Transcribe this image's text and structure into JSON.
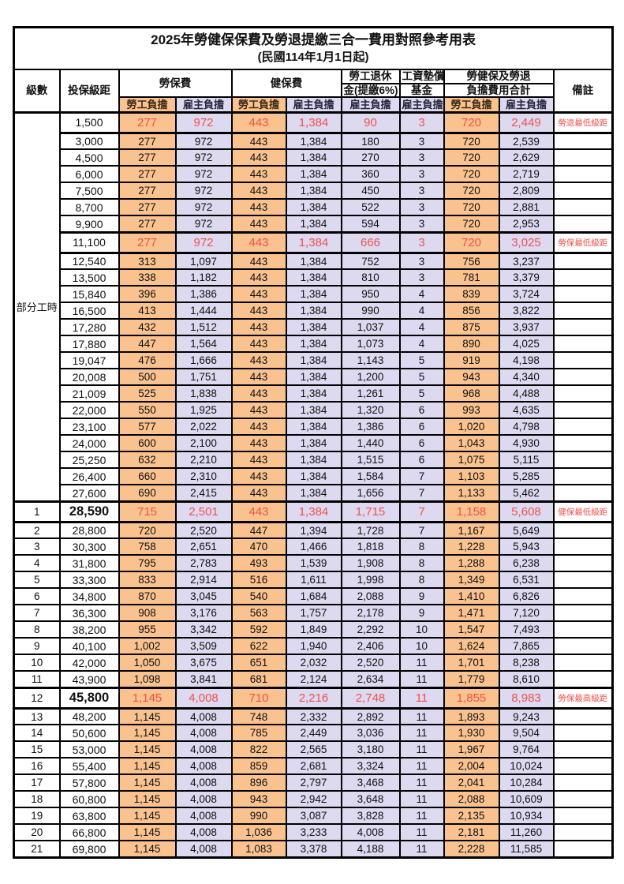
{
  "title": "2025年勞健保保費及勞退提繳三合一費用對照參考用表",
  "subtitle": "(民國114年1月1日起)",
  "header": {
    "level": "級數",
    "bracket": "投保級距",
    "labor_ins": "勞保費",
    "health_ins": "健保費",
    "pension_line1": "勞工退休",
    "pension_line2": "金(提繳6%)",
    "wage_fund_line1": "工資墊償",
    "wage_fund_line2": "基金",
    "total_line1": "勞健保及勞退",
    "total_line2": "負擔費用合計",
    "remark": "備註",
    "employee": "勞工負擔",
    "employer": "雇主負擔"
  },
  "group_label": "部分工時",
  "part_time_row_count": 23,
  "colors": {
    "employee_bg": "#fac28f",
    "employer_bg": "#dcd9f1",
    "highlight_text": "#f2514a",
    "border": "#000000"
  },
  "rows": [
    {
      "level": "",
      "bracket": "1,500",
      "values": [
        "277",
        "972",
        "443",
        "1,384",
        "90",
        "3",
        "720",
        "2,449"
      ],
      "remark": "勞退最低級距",
      "highlight": true,
      "big": false
    },
    {
      "level": "",
      "bracket": "3,000",
      "values": [
        "277",
        "972",
        "443",
        "1,384",
        "180",
        "3",
        "720",
        "2,539"
      ],
      "remark": "",
      "highlight": false,
      "big": false
    },
    {
      "level": "",
      "bracket": "4,500",
      "values": [
        "277",
        "972",
        "443",
        "1,384",
        "270",
        "3",
        "720",
        "2,629"
      ],
      "remark": "",
      "highlight": false,
      "big": false
    },
    {
      "level": "",
      "bracket": "6,000",
      "values": [
        "277",
        "972",
        "443",
        "1,384",
        "360",
        "3",
        "720",
        "2,719"
      ],
      "remark": "",
      "highlight": false,
      "big": false
    },
    {
      "level": "",
      "bracket": "7,500",
      "values": [
        "277",
        "972",
        "443",
        "1,384",
        "450",
        "3",
        "720",
        "2,809"
      ],
      "remark": "",
      "highlight": false,
      "big": false
    },
    {
      "level": "",
      "bracket": "8,700",
      "values": [
        "277",
        "972",
        "443",
        "1,384",
        "522",
        "3",
        "720",
        "2,881"
      ],
      "remark": "",
      "highlight": false,
      "big": false
    },
    {
      "level": "",
      "bracket": "9,900",
      "values": [
        "277",
        "972",
        "443",
        "1,384",
        "594",
        "3",
        "720",
        "2,953"
      ],
      "remark": "",
      "highlight": false,
      "big": false
    },
    {
      "level": "",
      "bracket": "11,100",
      "values": [
        "277",
        "972",
        "443",
        "1,384",
        "666",
        "3",
        "720",
        "3,025"
      ],
      "remark": "勞保最低級距",
      "highlight": true,
      "big": false
    },
    {
      "level": "",
      "bracket": "12,540",
      "values": [
        "313",
        "1,097",
        "443",
        "1,384",
        "752",
        "3",
        "756",
        "3,237"
      ],
      "remark": "",
      "highlight": false,
      "big": false
    },
    {
      "level": "",
      "bracket": "13,500",
      "values": [
        "338",
        "1,182",
        "443",
        "1,384",
        "810",
        "3",
        "781",
        "3,379"
      ],
      "remark": "",
      "highlight": false,
      "big": false
    },
    {
      "level": "",
      "bracket": "15,840",
      "values": [
        "396",
        "1,386",
        "443",
        "1,384",
        "950",
        "4",
        "839",
        "3,724"
      ],
      "remark": "",
      "highlight": false,
      "big": false
    },
    {
      "level": "",
      "bracket": "16,500",
      "values": [
        "413",
        "1,444",
        "443",
        "1,384",
        "990",
        "4",
        "856",
        "3,822"
      ],
      "remark": "",
      "highlight": false,
      "big": false
    },
    {
      "level": "",
      "bracket": "17,280",
      "values": [
        "432",
        "1,512",
        "443",
        "1,384",
        "1,037",
        "4",
        "875",
        "3,937"
      ],
      "remark": "",
      "highlight": false,
      "big": false
    },
    {
      "level": "",
      "bracket": "17,880",
      "values": [
        "447",
        "1,564",
        "443",
        "1,384",
        "1,073",
        "4",
        "890",
        "4,025"
      ],
      "remark": "",
      "highlight": false,
      "big": false
    },
    {
      "level": "",
      "bracket": "19,047",
      "values": [
        "476",
        "1,666",
        "443",
        "1,384",
        "1,143",
        "5",
        "919",
        "4,198"
      ],
      "remark": "",
      "highlight": false,
      "big": false
    },
    {
      "level": "",
      "bracket": "20,008",
      "values": [
        "500",
        "1,751",
        "443",
        "1,384",
        "1,200",
        "5",
        "943",
        "4,340"
      ],
      "remark": "",
      "highlight": false,
      "big": false
    },
    {
      "level": "",
      "bracket": "21,009",
      "values": [
        "525",
        "1,838",
        "443",
        "1,384",
        "1,261",
        "5",
        "968",
        "4,488"
      ],
      "remark": "",
      "highlight": false,
      "big": false
    },
    {
      "level": "",
      "bracket": "22,000",
      "values": [
        "550",
        "1,925",
        "443",
        "1,384",
        "1,320",
        "6",
        "993",
        "4,635"
      ],
      "remark": "",
      "highlight": false,
      "big": false
    },
    {
      "level": "",
      "bracket": "23,100",
      "values": [
        "577",
        "2,022",
        "443",
        "1,384",
        "1,386",
        "6",
        "1,020",
        "4,798"
      ],
      "remark": "",
      "highlight": false,
      "big": false
    },
    {
      "level": "",
      "bracket": "24,000",
      "values": [
        "600",
        "2,100",
        "443",
        "1,384",
        "1,440",
        "6",
        "1,043",
        "4,930"
      ],
      "remark": "",
      "highlight": false,
      "big": false
    },
    {
      "level": "",
      "bracket": "25,250",
      "values": [
        "632",
        "2,210",
        "443",
        "1,384",
        "1,515",
        "6",
        "1,075",
        "5,115"
      ],
      "remark": "",
      "highlight": false,
      "big": false
    },
    {
      "level": "",
      "bracket": "26,400",
      "values": [
        "660",
        "2,310",
        "443",
        "1,384",
        "1,584",
        "7",
        "1,103",
        "5,285"
      ],
      "remark": "",
      "highlight": false,
      "big": false
    },
    {
      "level": "",
      "bracket": "27,600",
      "values": [
        "690",
        "2,415",
        "443",
        "1,384",
        "1,656",
        "7",
        "1,133",
        "5,462"
      ],
      "remark": "",
      "highlight": false,
      "big": false
    },
    {
      "level": "1",
      "bracket": "28,590",
      "values": [
        "715",
        "2,501",
        "443",
        "1,384",
        "1,715",
        "7",
        "1,158",
        "5,608"
      ],
      "remark": "健保最低級距",
      "highlight": true,
      "big": true
    },
    {
      "level": "2",
      "bracket": "28,800",
      "values": [
        "720",
        "2,520",
        "447",
        "1,394",
        "1,728",
        "7",
        "1,167",
        "5,649"
      ],
      "remark": "",
      "highlight": false,
      "big": false
    },
    {
      "level": "3",
      "bracket": "30,300",
      "values": [
        "758",
        "2,651",
        "470",
        "1,466",
        "1,818",
        "8",
        "1,228",
        "5,943"
      ],
      "remark": "",
      "highlight": false,
      "big": false
    },
    {
      "level": "4",
      "bracket": "31,800",
      "values": [
        "795",
        "2,783",
        "493",
        "1,539",
        "1,908",
        "8",
        "1,288",
        "6,238"
      ],
      "remark": "",
      "highlight": false,
      "big": false
    },
    {
      "level": "5",
      "bracket": "33,300",
      "values": [
        "833",
        "2,914",
        "516",
        "1,611",
        "1,998",
        "8",
        "1,349",
        "6,531"
      ],
      "remark": "",
      "highlight": false,
      "big": false
    },
    {
      "level": "6",
      "bracket": "34,800",
      "values": [
        "870",
        "3,045",
        "540",
        "1,684",
        "2,088",
        "9",
        "1,410",
        "6,826"
      ],
      "remark": "",
      "highlight": false,
      "big": false
    },
    {
      "level": "7",
      "bracket": "36,300",
      "values": [
        "908",
        "3,176",
        "563",
        "1,757",
        "2,178",
        "9",
        "1,471",
        "7,120"
      ],
      "remark": "",
      "highlight": false,
      "big": false
    },
    {
      "level": "8",
      "bracket": "38,200",
      "values": [
        "955",
        "3,342",
        "592",
        "1,849",
        "2,292",
        "10",
        "1,547",
        "7,493"
      ],
      "remark": "",
      "highlight": false,
      "big": false
    },
    {
      "level": "9",
      "bracket": "40,100",
      "values": [
        "1,002",
        "3,509",
        "622",
        "1,940",
        "2,406",
        "10",
        "1,624",
        "7,865"
      ],
      "remark": "",
      "highlight": false,
      "big": false
    },
    {
      "level": "10",
      "bracket": "42,000",
      "values": [
        "1,050",
        "3,675",
        "651",
        "2,032",
        "2,520",
        "11",
        "1,701",
        "8,238"
      ],
      "remark": "",
      "highlight": false,
      "big": false
    },
    {
      "level": "11",
      "bracket": "43,900",
      "values": [
        "1,098",
        "3,841",
        "681",
        "2,124",
        "2,634",
        "11",
        "1,779",
        "8,610"
      ],
      "remark": "",
      "highlight": false,
      "big": false
    },
    {
      "level": "12",
      "bracket": "45,800",
      "values": [
        "1,145",
        "4,008",
        "710",
        "2,216",
        "2,748",
        "11",
        "1,855",
        "8,983"
      ],
      "remark": "勞保最高級距",
      "highlight": true,
      "big": true
    },
    {
      "level": "13",
      "bracket": "48,200",
      "values": [
        "1,145",
        "4,008",
        "748",
        "2,332",
        "2,892",
        "11",
        "1,893",
        "9,243"
      ],
      "remark": "",
      "highlight": false,
      "big": false
    },
    {
      "level": "14",
      "bracket": "50,600",
      "values": [
        "1,145",
        "4,008",
        "785",
        "2,449",
        "3,036",
        "11",
        "1,930",
        "9,504"
      ],
      "remark": "",
      "highlight": false,
      "big": false
    },
    {
      "level": "15",
      "bracket": "53,000",
      "values": [
        "1,145",
        "4,008",
        "822",
        "2,565",
        "3,180",
        "11",
        "1,967",
        "9,764"
      ],
      "remark": "",
      "highlight": false,
      "big": false
    },
    {
      "level": "16",
      "bracket": "55,400",
      "values": [
        "1,145",
        "4,008",
        "859",
        "2,681",
        "3,324",
        "11",
        "2,004",
        "10,024"
      ],
      "remark": "",
      "highlight": false,
      "big": false
    },
    {
      "level": "17",
      "bracket": "57,800",
      "values": [
        "1,145",
        "4,008",
        "896",
        "2,797",
        "3,468",
        "11",
        "2,041",
        "10,284"
      ],
      "remark": "",
      "highlight": false,
      "big": false
    },
    {
      "level": "18",
      "bracket": "60,800",
      "values": [
        "1,145",
        "4,008",
        "943",
        "2,942",
        "3,648",
        "11",
        "2,088",
        "10,609"
      ],
      "remark": "",
      "highlight": false,
      "big": false
    },
    {
      "level": "19",
      "bracket": "63,800",
      "values": [
        "1,145",
        "4,008",
        "990",
        "3,087",
        "3,828",
        "11",
        "2,135",
        "10,934"
      ],
      "remark": "",
      "highlight": false,
      "big": false
    },
    {
      "level": "20",
      "bracket": "66,800",
      "values": [
        "1,145",
        "4,008",
        "1,036",
        "3,233",
        "4,008",
        "11",
        "2,181",
        "11,260"
      ],
      "remark": "",
      "highlight": false,
      "big": false
    },
    {
      "level": "21",
      "bracket": "69,800",
      "values": [
        "1,145",
        "4,008",
        "1,083",
        "3,378",
        "4,188",
        "11",
        "2,228",
        "11,585"
      ],
      "remark": "",
      "highlight": false,
      "big": false
    }
  ]
}
